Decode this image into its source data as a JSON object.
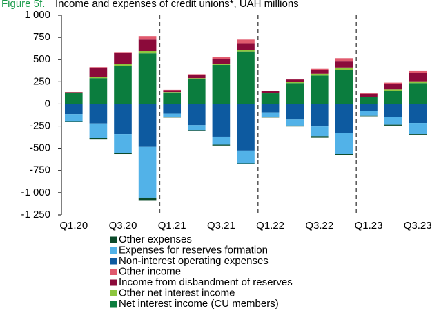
{
  "chart_data": {
    "type": "stacked_bar",
    "figure_label": "Figure 5f.",
    "title": "Income and expenses of credit unions*, UAH millions",
    "categories": [
      "Q1.20",
      null,
      "Q3.20",
      null,
      "Q1.21",
      null,
      "Q3.21",
      null,
      "Q1.22",
      null,
      "Q3.22",
      null,
      "Q1.23",
      null,
      "Q3.23"
    ],
    "series": [
      {
        "name": "Net interest income (CU members)",
        "color": "#0b7d3e",
        "values": [
          125,
          290,
          430,
          570,
          130,
          280,
          440,
          590,
          120,
          235,
          320,
          385,
          75,
          150,
          235
        ]
      },
      {
        "name": "Other net interest income",
        "color": "#8dc63f",
        "values": [
          5,
          10,
          20,
          25,
          5,
          10,
          15,
          15,
          5,
          10,
          20,
          25,
          5,
          15,
          20
        ]
      },
      {
        "name": "Income from disbandment of reserves",
        "color": "#8b0a3a",
        "values": [
          5,
          110,
          130,
          130,
          20,
          40,
          50,
          80,
          20,
          30,
          45,
          75,
          35,
          60,
          95
        ]
      },
      {
        "name": "Other income",
        "color": "#e05a6e",
        "values": [
          0,
          5,
          5,
          40,
          5,
          5,
          20,
          40,
          5,
          5,
          10,
          30,
          5,
          15,
          20
        ]
      },
      {
        "name": "Non-interest  operating expenses",
        "color": "#0d5aa0",
        "values": [
          -115,
          -220,
          -340,
          -485,
          -110,
          -240,
          -370,
          -525,
          -95,
          -170,
          -255,
          -325,
          -75,
          -150,
          -215
        ]
      },
      {
        "name": "Expenses for reserves formation",
        "color": "#52b2e8",
        "values": [
          -80,
          -165,
          -210,
          -570,
          -40,
          -55,
          -90,
          -145,
          -55,
          -75,
          -110,
          -240,
          -60,
          -85,
          -125
        ]
      },
      {
        "name": "Other expenses",
        "color": "#0b4a2a",
        "values": [
          -5,
          -10,
          -15,
          -35,
          -5,
          -5,
          -10,
          -10,
          -5,
          -10,
          -10,
          -15,
          -5,
          -10,
          -10
        ]
      }
    ],
    "ylim": [
      -1250,
      1000
    ],
    "yticks": [
      {
        "value": -1250,
        "label": "-1 250"
      },
      {
        "value": -1000,
        "label": "-1 000"
      },
      -750,
      -500,
      -250,
      0,
      250,
      500,
      750,
      {
        "value": 1000,
        "label": "1 000"
      }
    ]
  }
}
